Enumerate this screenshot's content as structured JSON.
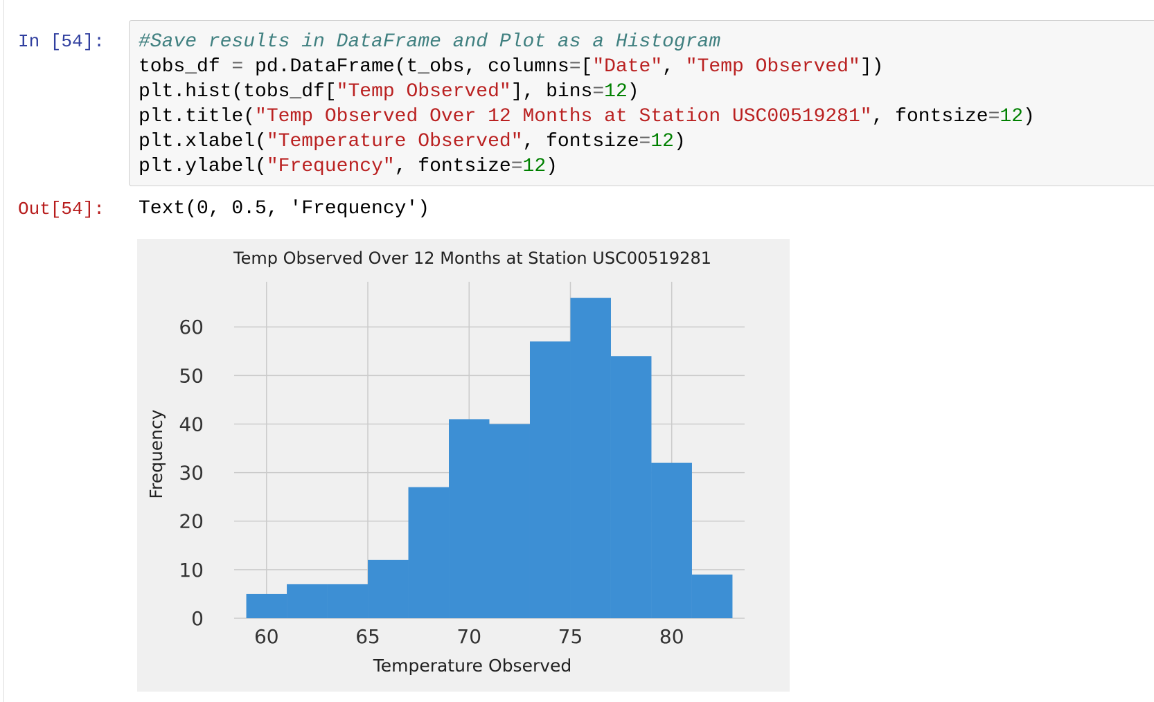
{
  "input_prompt": "In [54]:",
  "output_prompt": "Out[54]:",
  "code_lines": [
    [
      {
        "t": "#Save results in DataFrame and Plot as a Histogram",
        "c": "comment"
      }
    ],
    [
      {
        "t": "tobs_df "
      },
      {
        "t": "=",
        "c": "op"
      },
      {
        "t": " pd.DataFrame(t_obs, columns"
      },
      {
        "t": "=",
        "c": "op"
      },
      {
        "t": "["
      },
      {
        "t": "\"Date\"",
        "c": "string"
      },
      {
        "t": ", "
      },
      {
        "t": "\"Temp Observed\"",
        "c": "string"
      },
      {
        "t": "])"
      }
    ],
    [
      {
        "t": "plt.hist(tobs_df["
      },
      {
        "t": "\"Temp Observed\"",
        "c": "string"
      },
      {
        "t": "], bins"
      },
      {
        "t": "=",
        "c": "op"
      },
      {
        "t": "12",
        "c": "number"
      },
      {
        "t": ")"
      }
    ],
    [
      {
        "t": "plt.title("
      },
      {
        "t": "\"Temp Observed Over 12 Months at Station USC00519281\"",
        "c": "string"
      },
      {
        "t": ", fontsize"
      },
      {
        "t": "=",
        "c": "op"
      },
      {
        "t": "12",
        "c": "number"
      },
      {
        "t": ")"
      }
    ],
    [
      {
        "t": "plt.xlabel("
      },
      {
        "t": "\"Temperature Observed\"",
        "c": "string"
      },
      {
        "t": ", fontsize"
      },
      {
        "t": "=",
        "c": "op"
      },
      {
        "t": "12",
        "c": "number"
      },
      {
        "t": ")"
      }
    ],
    [
      {
        "t": "plt.ylabel("
      },
      {
        "t": "\"Frequency\"",
        "c": "string"
      },
      {
        "t": ", fontsize"
      },
      {
        "t": "=",
        "c": "op"
      },
      {
        "t": "12",
        "c": "number"
      },
      {
        "t": ")"
      }
    ]
  ],
  "output_text": "Text(0, 0.5, 'Frequency')",
  "colors": {
    "bar": "#3d8fd4",
    "grid": "#cbcbcb",
    "figure_bg": "#f0f0f0"
  },
  "chart_data": {
    "type": "bar",
    "title": "Temp Observed Over 12 Months at Station USC00519281",
    "xlabel": "Temperature Observed",
    "ylabel": "Frequency",
    "bin_edges": [
      59,
      61,
      63,
      65,
      67,
      69,
      71,
      73,
      75,
      77,
      79,
      81,
      83
    ],
    "values": [
      5,
      7,
      7,
      12,
      27,
      41,
      40,
      57,
      66,
      54,
      32,
      9
    ],
    "xticks": [
      60,
      65,
      70,
      75,
      80
    ],
    "yticks": [
      0,
      10,
      20,
      30,
      40,
      50,
      60
    ],
    "xlim": [
      58.4,
      83.6
    ],
    "ylim": [
      0,
      69.3
    ],
    "grid": true,
    "style": "fivethirtyeight"
  }
}
